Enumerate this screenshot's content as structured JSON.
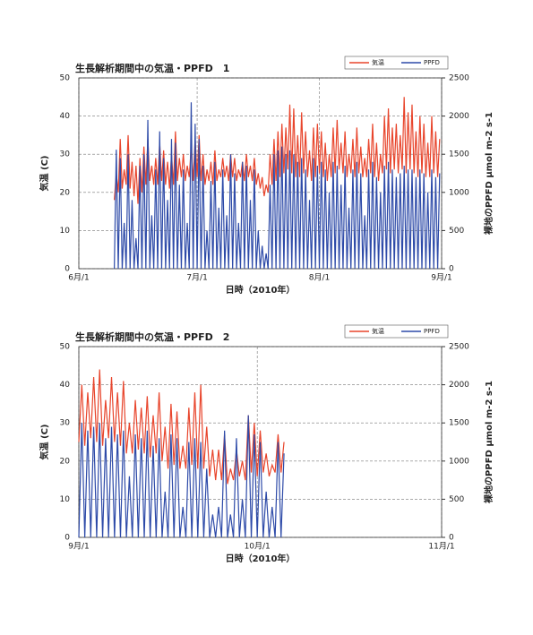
{
  "chart_data": [
    {
      "type": "line",
      "title": "生長解析期間中の気温・PPFD　1",
      "x_label": "日時（2010年）",
      "y_label": "気温 (C)",
      "y2_label": "裸地のPPFD μmol m-2 s-1",
      "xlim": [
        0,
        92
      ],
      "xticks": [
        {
          "value": 0,
          "label": "6月/1"
        },
        {
          "value": 30,
          "label": "7月/1"
        },
        {
          "value": 61,
          "label": "8月/1"
        },
        {
          "value": 92,
          "label": "9月/1"
        }
      ],
      "ylim": [
        0,
        50
      ],
      "yticks": [
        0,
        10,
        20,
        30,
        40,
        50
      ],
      "y2lim": [
        0,
        2500
      ],
      "y2ticks": [
        0,
        500,
        1000,
        1500,
        2000,
        2500
      ],
      "grid": true,
      "legend": "top right",
      "x": [
        9,
        9.5,
        10,
        10.5,
        11,
        11.5,
        12,
        12.5,
        13,
        13.5,
        14,
        14.5,
        15,
        15.5,
        16,
        16.5,
        17,
        17.5,
        18,
        18.5,
        19,
        19.5,
        20,
        20.5,
        21,
        21.5,
        22,
        22.5,
        23,
        23.5,
        24,
        24.5,
        25,
        25.5,
        26,
        26.5,
        27,
        27.5,
        28,
        28.5,
        29,
        29.5,
        30,
        30.5,
        31,
        31.5,
        32,
        32.5,
        33,
        33.5,
        34,
        34.5,
        35,
        35.5,
        36,
        36.5,
        37,
        37.5,
        38,
        38.5,
        39,
        39.5,
        40,
        40.5,
        41,
        41.5,
        42,
        42.5,
        43,
        43.5,
        44,
        44.5,
        45,
        45.5,
        46,
        46.5,
        47,
        47.5,
        48,
        48.5,
        49,
        49.5,
        50,
        50.5,
        51,
        51.5,
        52,
        52.5,
        53,
        53.5,
        54,
        54.5,
        55,
        55.5,
        56,
        56.5,
        57,
        57.5,
        58,
        58.5,
        59,
        59.5,
        60,
        60.5,
        61,
        61.5,
        62,
        62.5,
        63,
        63.5,
        64,
        64.5,
        65,
        65.5,
        66,
        66.5,
        67,
        67.5,
        68,
        68.5,
        69,
        69.5,
        70,
        70.5,
        71,
        71.5,
        72,
        72.5,
        73,
        73.5,
        74,
        74.5,
        75,
        75.5,
        76,
        76.5,
        77,
        77.5,
        78,
        78.5,
        79,
        79.5,
        80,
        80.5,
        81,
        81.5,
        82,
        82.5,
        83,
        83.5,
        84,
        84.5,
        85,
        85.5,
        86,
        86.5,
        87,
        87.5,
        88,
        88.5,
        89,
        89.5,
        90,
        90.5,
        91,
        91.5
      ],
      "series": [
        {
          "name": "気温",
          "color": "#e8452c",
          "values": [
            18,
            25,
            20,
            34,
            21,
            26,
            22,
            35,
            21,
            28,
            19,
            27,
            17,
            29,
            20,
            32,
            22,
            34,
            23,
            27,
            22,
            29,
            22,
            33,
            23,
            31,
            22,
            28,
            21,
            30,
            22,
            36,
            23,
            29,
            24,
            30,
            23,
            27,
            24,
            32,
            23,
            34,
            24,
            35,
            23,
            30,
            22,
            26,
            23,
            28,
            22,
            31,
            23,
            26,
            24,
            29,
            24,
            27,
            23,
            30,
            24,
            29,
            23,
            26,
            24,
            28,
            23,
            30,
            24,
            27,
            23,
            29,
            22,
            25,
            21,
            24,
            19,
            22,
            20,
            30,
            22,
            34,
            23,
            36,
            24,
            38,
            25,
            37,
            26,
            43,
            25,
            42,
            24,
            35,
            24,
            41,
            25,
            36,
            24,
            31,
            23,
            37,
            24,
            38,
            25,
            36,
            24,
            33,
            23,
            30,
            24,
            37,
            25,
            39,
            26,
            33,
            25,
            36,
            24,
            30,
            25,
            34,
            24,
            37,
            25,
            32,
            24,
            29,
            24,
            34,
            25,
            38,
            24,
            33,
            23,
            30,
            25,
            40,
            26,
            42,
            25,
            37,
            26,
            38,
            25,
            35,
            26,
            45,
            25,
            41,
            26,
            43,
            25,
            36,
            24,
            40,
            25,
            38,
            24,
            33,
            24,
            40,
            25,
            36,
            24,
            34
          ]
        },
        {
          "name": "PPFD",
          "color": "#2d4aa8",
          "axis": "y2",
          "values": [
            0,
            1560,
            0,
            1450,
            0,
            600,
            0,
            1500,
            0,
            900,
            0,
            400,
            0,
            1350,
            0,
            1500,
            0,
            1950,
            0,
            700,
            0,
            1300,
            0,
            1800,
            0,
            1450,
            0,
            900,
            0,
            1700,
            0,
            1650,
            0,
            1100,
            0,
            1300,
            0,
            600,
            0,
            2180,
            0,
            1900,
            0,
            1700,
            0,
            1350,
            0,
            500,
            0,
            1150,
            0,
            1400,
            0,
            800,
            0,
            1300,
            0,
            700,
            0,
            1500,
            0,
            1250,
            0,
            600,
            0,
            1400,
            0,
            1350,
            0,
            900,
            0,
            1300,
            0,
            500,
            0,
            300,
            0,
            200,
            0,
            1100,
            0,
            1500,
            0,
            1550,
            0,
            1600,
            0,
            1500,
            0,
            1550,
            0,
            1500,
            0,
            1400,
            0,
            1450,
            0,
            1300,
            0,
            900,
            0,
            1450,
            0,
            1350,
            0,
            1400,
            0,
            1300,
            0,
            1000,
            0,
            1400,
            0,
            1350,
            0,
            1100,
            0,
            1350,
            0,
            800,
            0,
            1300,
            0,
            1400,
            0,
            1250,
            0,
            700,
            0,
            1300,
            0,
            1400,
            0,
            1200,
            0,
            1000,
            0,
            1350,
            0,
            1400,
            0,
            1300,
            0,
            1200,
            0,
            1250,
            0,
            1350,
            0,
            1300,
            0,
            1300,
            0,
            1200,
            0,
            1300,
            0,
            1250,
            0,
            1000,
            0,
            1300,
            0,
            1200,
            0,
            1250
          ]
        }
      ]
    },
    {
      "type": "line",
      "title": "生長解析期間中の気温・PPFD　2",
      "x_label": "日時（2010年）",
      "y_label": "気温 (C)",
      "y2_label": "裸地のPPFD μmol m-2 s-1",
      "xlim": [
        0,
        61
      ],
      "xticks": [
        {
          "value": 0,
          "label": "9月/1"
        },
        {
          "value": 30,
          "label": "10月/1"
        },
        {
          "value": 61,
          "label": "11月/1"
        }
      ],
      "ylim": [
        0,
        50
      ],
      "yticks": [
        0,
        10,
        20,
        30,
        40,
        50
      ],
      "y2lim": [
        0,
        2500
      ],
      "y2ticks": [
        0,
        500,
        1000,
        1500,
        2000,
        2500
      ],
      "grid": true,
      "legend": "top right",
      "x": [
        0,
        0.5,
        1,
        1.5,
        2,
        2.5,
        3,
        3.5,
        4,
        4.5,
        5,
        5.5,
        6,
        6.5,
        7,
        7.5,
        8,
        8.5,
        9,
        9.5,
        10,
        10.5,
        11,
        11.5,
        12,
        12.5,
        13,
        13.5,
        14,
        14.5,
        15,
        15.5,
        16,
        16.5,
        17,
        17.5,
        18,
        18.5,
        19,
        19.5,
        20,
        20.5,
        21,
        21.5,
        22,
        22.5,
        23,
        23.5,
        24,
        24.5,
        25,
        25.5,
        26,
        26.5,
        27,
        27.5,
        28,
        28.5,
        29,
        29.5,
        30,
        30.5,
        31,
        31.5,
        32,
        32.5,
        33,
        33.5,
        34,
        34.5
      ],
      "series": [
        {
          "name": "気温",
          "color": "#e8452c",
          "values": [
            25,
            40,
            24,
            38,
            26,
            42,
            25,
            44,
            24,
            36,
            26,
            42,
            25,
            38,
            24,
            41,
            22,
            30,
            22,
            36,
            23,
            34,
            22,
            37,
            21,
            32,
            22,
            38,
            20,
            29,
            18,
            35,
            19,
            33,
            18,
            24,
            18,
            34,
            19,
            38,
            18,
            40,
            18,
            29,
            16,
            23,
            15,
            23,
            15,
            27,
            14,
            18,
            15,
            23,
            16,
            20,
            15,
            32,
            17,
            30,
            16,
            28,
            17,
            22,
            16,
            19,
            17,
            27,
            17,
            25
          ]
        },
        {
          "name": "PPFD",
          "color": "#2d4aa8",
          "axis": "y2",
          "values": [
            0,
            1500,
            0,
            1400,
            0,
            1450,
            0,
            1500,
            0,
            1300,
            0,
            1450,
            0,
            1350,
            0,
            1400,
            0,
            800,
            0,
            1350,
            0,
            1300,
            0,
            1400,
            0,
            1200,
            0,
            1300,
            0,
            600,
            0,
            1350,
            0,
            1300,
            0,
            400,
            0,
            1250,
            0,
            1300,
            0,
            1250,
            0,
            900,
            0,
            300,
            0,
            400,
            0,
            1400,
            0,
            300,
            0,
            1300,
            0,
            500,
            0,
            1600,
            0,
            1350,
            0,
            1250,
            0,
            600,
            0,
            400,
            0,
            1250,
            0,
            1100
          ]
        }
      ]
    }
  ]
}
